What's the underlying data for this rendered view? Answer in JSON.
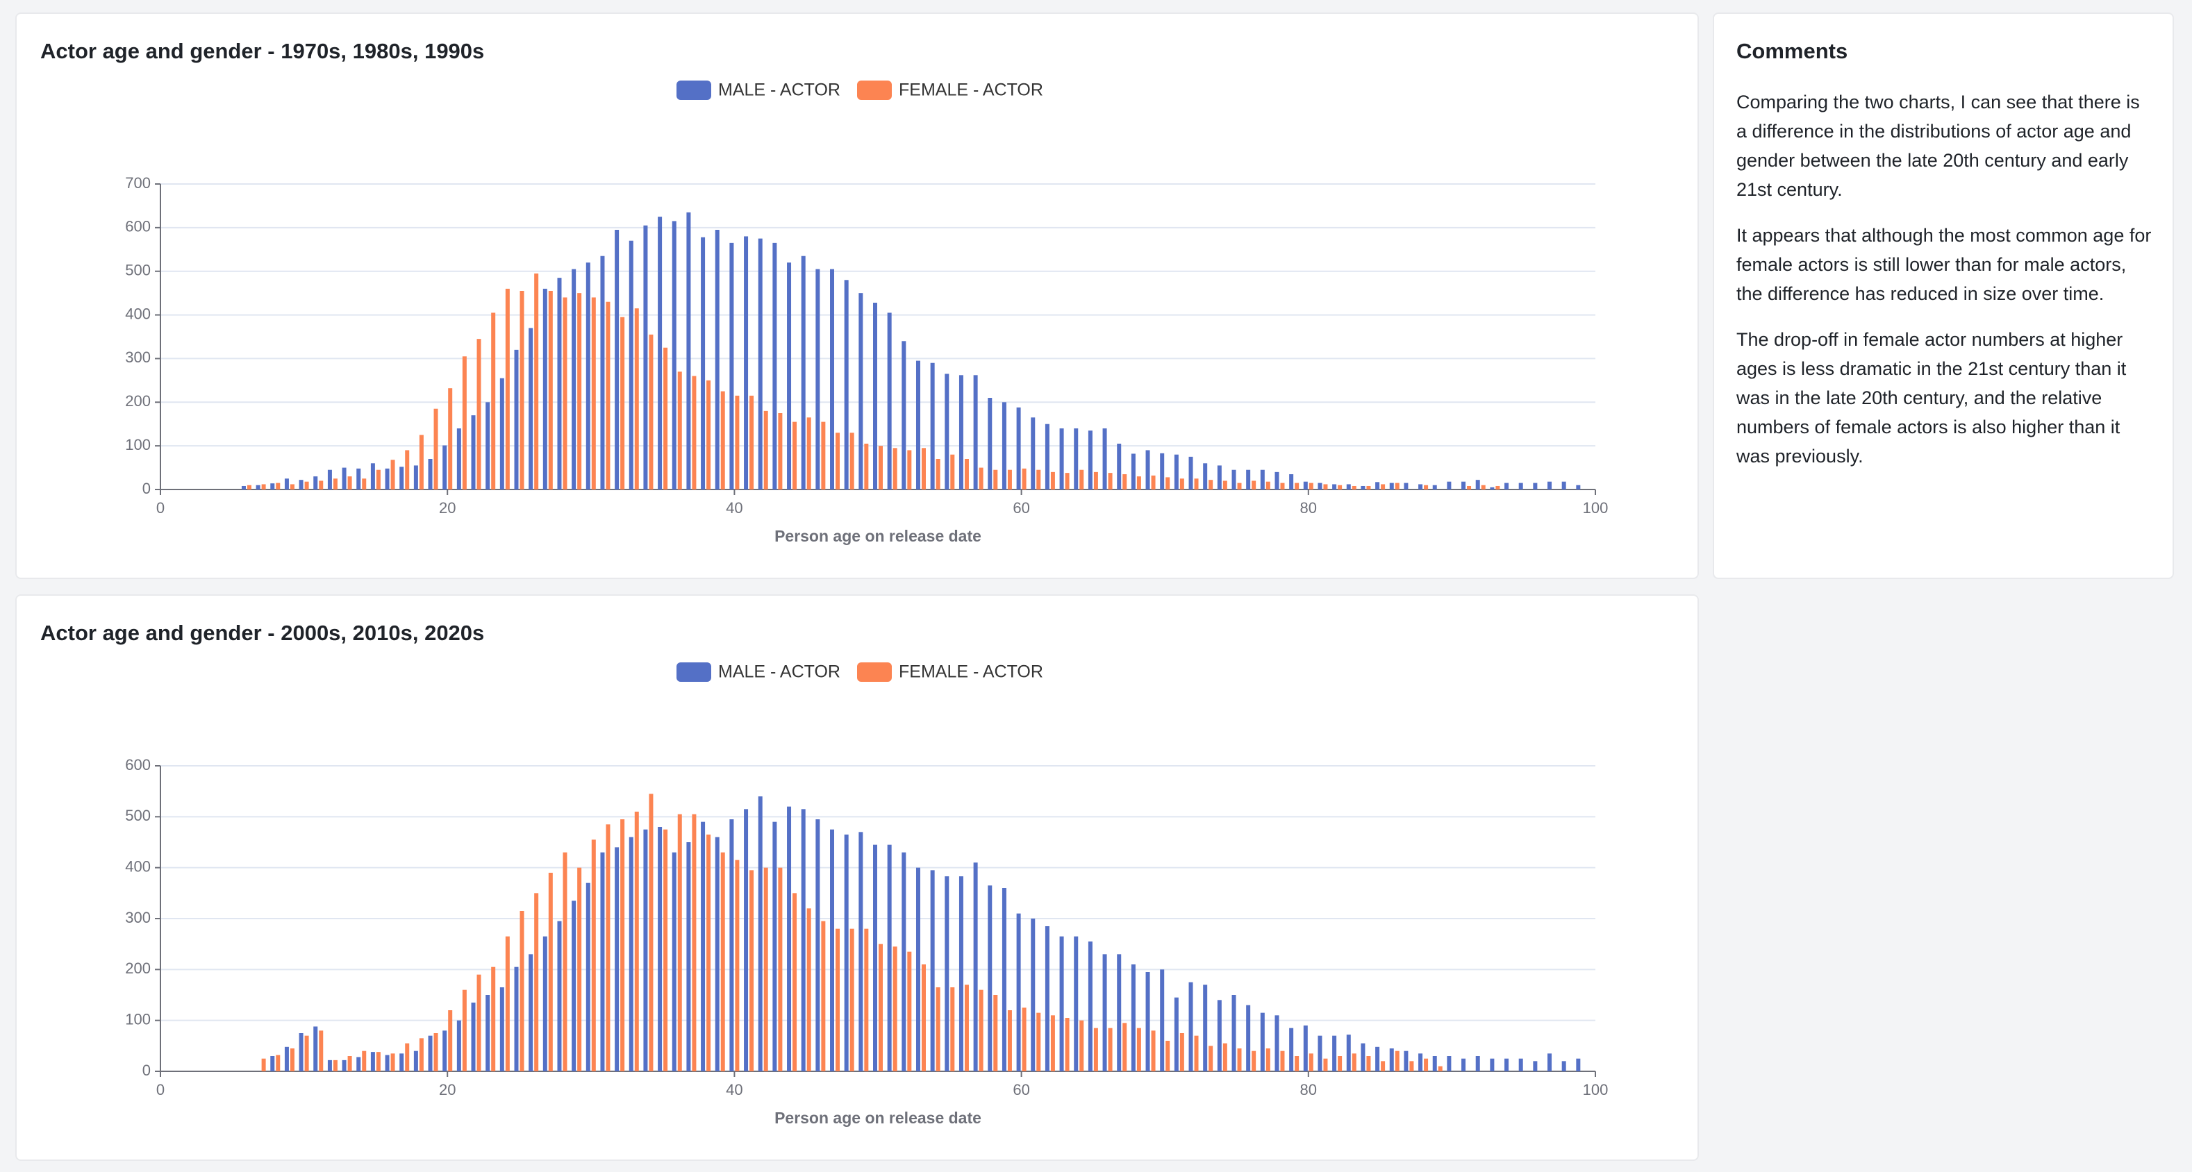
{
  "chart_data": [
    {
      "type": "bar",
      "title": "Actor age and gender - 1970s, 1980s, 1990s",
      "xlabel": "Person age on release date",
      "legend": "top",
      "x": [
        6,
        7,
        8,
        9,
        10,
        11,
        12,
        13,
        14,
        15,
        16,
        17,
        18,
        19,
        20,
        21,
        22,
        23,
        24,
        25,
        26,
        27,
        28,
        29,
        30,
        31,
        32,
        33,
        34,
        35,
        36,
        37,
        38,
        39,
        40,
        41,
        42,
        43,
        44,
        45,
        46,
        47,
        48,
        49,
        50,
        51,
        52,
        53,
        54,
        55,
        56,
        57,
        58,
        59,
        60,
        61,
        62,
        63,
        64,
        65,
        66,
        67,
        68,
        69,
        70,
        71,
        72,
        73,
        74,
        75,
        76,
        77,
        78,
        79,
        80,
        81,
        82,
        83,
        84,
        85,
        86,
        87,
        88,
        89,
        90,
        91,
        92,
        93,
        94,
        95,
        96,
        97,
        98,
        99
      ],
      "series": [
        {
          "name": "MALE - ACTOR",
          "color": "#5470c6",
          "values": [
            8,
            10,
            14,
            25,
            22,
            30,
            45,
            50,
            48,
            60,
            48,
            52,
            55,
            70,
            101,
            140,
            170,
            200,
            255,
            320,
            370,
            460,
            485,
            505,
            520,
            535,
            595,
            570,
            605,
            625,
            615,
            635,
            578,
            595,
            565,
            580,
            575,
            565,
            520,
            535,
            505,
            505,
            480,
            450,
            428,
            405,
            340,
            295,
            290,
            265,
            262,
            262,
            210,
            200,
            188,
            165,
            150,
            140,
            140,
            135,
            140,
            105,
            82,
            90,
            83,
            80,
            75,
            60,
            55,
            45,
            45,
            45,
            40,
            35,
            18,
            15,
            12,
            12,
            8,
            17,
            15,
            15,
            12,
            10,
            18,
            18,
            22,
            5,
            15,
            15,
            15,
            18,
            18,
            10
          ]
        },
        {
          "name": "FEMALE - ACTOR",
          "color": "#fc8452",
          "values": [
            10,
            12,
            15,
            12,
            18,
            20,
            25,
            30,
            25,
            45,
            68,
            90,
            125,
            185,
            232,
            305,
            345,
            405,
            460,
            455,
            495,
            455,
            440,
            450,
            440,
            430,
            395,
            415,
            355,
            325,
            270,
            260,
            250,
            225,
            215,
            215,
            180,
            175,
            155,
            165,
            155,
            130,
            130,
            105,
            100,
            95,
            90,
            95,
            70,
            80,
            70,
            50,
            45,
            45,
            48,
            45,
            40,
            38,
            45,
            40,
            38,
            35,
            30,
            32,
            28,
            25,
            25,
            22,
            20,
            15,
            20,
            18,
            15,
            15,
            15,
            12,
            10,
            8,
            8,
            12,
            15,
            null,
            10,
            null,
            null,
            8,
            10,
            8,
            null,
            null,
            null,
            null,
            null,
            null
          ]
        }
      ],
      "xlim": [
        0,
        100
      ],
      "xticks": [
        0,
        20,
        40,
        60,
        80,
        100
      ],
      "ylim": [
        0,
        700
      ],
      "yticks": [
        0,
        100,
        200,
        300,
        400,
        500,
        600,
        700
      ],
      "grid": true
    },
    {
      "type": "bar",
      "title": "Actor age and gender - 2000s, 2010s, 2020s",
      "xlabel": "Person age on release date",
      "legend": "top",
      "x": [
        6,
        7,
        8,
        9,
        10,
        11,
        12,
        13,
        14,
        15,
        16,
        17,
        18,
        19,
        20,
        21,
        22,
        23,
        24,
        25,
        26,
        27,
        28,
        29,
        30,
        31,
        32,
        33,
        34,
        35,
        36,
        37,
        38,
        39,
        40,
        41,
        42,
        43,
        44,
        45,
        46,
        47,
        48,
        49,
        50,
        51,
        52,
        53,
        54,
        55,
        56,
        57,
        58,
        59,
        60,
        61,
        62,
        63,
        64,
        65,
        66,
        67,
        68,
        69,
        70,
        71,
        72,
        73,
        74,
        75,
        76,
        77,
        78,
        79,
        80,
        81,
        82,
        83,
        84,
        85,
        86,
        87,
        88,
        89,
        90,
        91,
        92,
        93,
        94,
        95,
        96,
        97,
        98,
        99
      ],
      "series": [
        {
          "name": "MALE - ACTOR",
          "color": "#5470c6",
          "values": [
            null,
            null,
            30,
            48,
            75,
            88,
            22,
            22,
            28,
            38,
            32,
            35,
            40,
            70,
            80,
            100,
            135,
            150,
            165,
            205,
            230,
            265,
            295,
            335,
            370,
            430,
            440,
            460,
            475,
            480,
            430,
            450,
            490,
            460,
            495,
            515,
            540,
            490,
            520,
            515,
            495,
            475,
            465,
            470,
            445,
            445,
            430,
            400,
            395,
            383,
            383,
            410,
            365,
            360,
            310,
            300,
            285,
            265,
            265,
            255,
            230,
            230,
            210,
            195,
            200,
            145,
            175,
            170,
            140,
            150,
            130,
            115,
            110,
            85,
            90,
            70,
            70,
            72,
            55,
            48,
            45,
            40,
            35,
            30,
            30,
            25,
            30,
            25,
            25,
            25,
            20,
            35,
            20,
            25
          ]
        },
        {
          "name": "FEMALE - ACTOR",
          "color": "#fc8452",
          "values": [
            null,
            25,
            32,
            45,
            70,
            80,
            22,
            30,
            40,
            38,
            35,
            55,
            65,
            75,
            120,
            160,
            190,
            205,
            265,
            315,
            350,
            390,
            430,
            400,
            455,
            485,
            495,
            510,
            545,
            475,
            505,
            505,
            465,
            430,
            415,
            395,
            400,
            400,
            350,
            320,
            295,
            280,
            280,
            280,
            250,
            245,
            235,
            210,
            165,
            165,
            170,
            160,
            150,
            120,
            125,
            115,
            110,
            105,
            100,
            85,
            85,
            95,
            85,
            80,
            60,
            75,
            70,
            50,
            55,
            45,
            40,
            45,
            40,
            30,
            35,
            25,
            30,
            35,
            30,
            20,
            40,
            20,
            25,
            10,
            null,
            null,
            null,
            null,
            null,
            null,
            null,
            null,
            null,
            null
          ]
        }
      ],
      "xlim": [
        0,
        100
      ],
      "xticks": [
        0,
        20,
        40,
        60,
        80,
        100
      ],
      "ylim": [
        0,
        600
      ],
      "yticks": [
        0,
        100,
        200,
        300,
        400,
        500,
        600
      ],
      "grid": true
    }
  ],
  "comments": {
    "title": "Comments",
    "paragraphs": [
      "Comparing the two charts, I can see that there is a difference in the distributions of actor age and gender between the late 20th century and early 21st century.",
      "It appears that although the most common age for female actors is still lower than for male actors, the difference has reduced in size over time.",
      "The drop-off in female actor numbers at higher ages is less dramatic in the 21st century than it was in the late 20th century, and the relative numbers of female actors is also higher than it was previously."
    ]
  }
}
